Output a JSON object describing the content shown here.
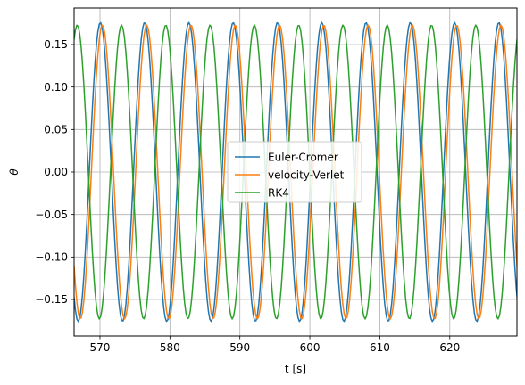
{
  "chart_data": {
    "type": "line",
    "title": "",
    "xlabel": "t [s]",
    "ylabel": "θ",
    "xlim": [
      566.3,
      629.6
    ],
    "ylim": [
      -0.193,
      0.193
    ],
    "grid": true,
    "legend_position": "center",
    "x_ticks": [
      570,
      580,
      590,
      600,
      610,
      620
    ],
    "x_tick_labels": [
      "570",
      "580",
      "590",
      "600",
      "610",
      "620"
    ],
    "y_ticks": [
      -0.15,
      -0.1,
      -0.05,
      0.0,
      0.05,
      0.1,
      0.15
    ],
    "y_tick_labels": [
      "−0.15",
      "−0.10",
      "−0.05",
      "0.00",
      "0.05",
      "0.10",
      "0.15"
    ],
    "series": [
      {
        "name": "Euler-Cromer",
        "color": "#1f77b4",
        "amplitude": 0.176,
        "period": 6.33,
        "peak_times": [
          570.05,
          576.38,
          582.71,
          589.04,
          595.37,
          601.7,
          608.03,
          614.36,
          620.69,
          627.02
        ]
      },
      {
        "name": "velocity-Verlet",
        "color": "#ff7f0e",
        "amplitude": 0.173,
        "period": 6.33,
        "peak_times": [
          570.35,
          576.68,
          583.01,
          589.34,
          595.67,
          602.0,
          608.33,
          614.66,
          620.99,
          627.32
        ]
      },
      {
        "name": "RK4",
        "color": "#2ca02c",
        "amplitude": 0.173,
        "period": 6.33,
        "peak_times": [
          566.75,
          573.08,
          579.41,
          585.74,
          592.07,
          598.4,
          604.73,
          611.06,
          617.39,
          623.72
        ]
      }
    ]
  }
}
